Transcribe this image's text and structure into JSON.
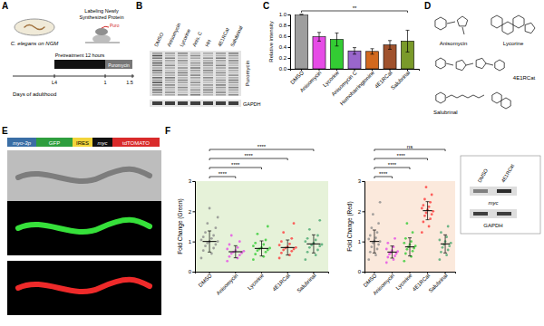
{
  "panel_labels": [
    "A",
    "B",
    "C",
    "D",
    "E",
    "F"
  ],
  "panel_a": {
    "dish_label": "C. elegans on NGM",
    "label_lines": [
      "Labeling Newly",
      "Synthesized Protein"
    ],
    "tag": "Puro",
    "pretreatment": "Pretreatment 12 hours",
    "labeling": "Puromycin",
    "timeline_label": "Days of adulthood",
    "timeline_ticks": [
      "L4",
      "1",
      "1.5"
    ]
  },
  "panel_b": {
    "lanes": [
      "DMSO",
      "Anisomycin",
      "Lycorine",
      "Anis. C",
      "HH",
      "4E1RCat",
      "Salubrinal"
    ],
    "rows": [
      "Puromycin",
      "GAPDH"
    ]
  },
  "panel_d": {
    "compounds": [
      "Anisomycin",
      "Lycorine",
      "4E1RCat",
      "Salubrinal"
    ]
  },
  "panel_e": {
    "construct": [
      "myo-3p",
      "GFP",
      "IRES",
      "myc",
      "tdTOMATO"
    ]
  },
  "panel_f_inset": {
    "lanes": [
      "DMSO",
      "4E1RCat"
    ],
    "rows": [
      "myc",
      "GAPDH"
    ]
  },
  "chart_data": [
    {
      "type": "bar",
      "categories": [
        "DMSO",
        "Anisomycin",
        "Lycorine",
        "Anisomycin C",
        "Homoharringtonine",
        "4E1RCat",
        "Salubrinal"
      ],
      "values": [
        1.0,
        0.59,
        0.54,
        0.33,
        0.32,
        0.44,
        0.51
      ],
      "errors": [
        0,
        0.08,
        0.12,
        0.06,
        0.05,
        0.08,
        0.2
      ],
      "colors": [
        "#9e9e9e",
        "#e64ce6",
        "#33cc33",
        "#9966cc",
        "#d2691e",
        "#a0522d",
        "#7a9a2a"
      ],
      "y_label": "Relative intensity",
      "ylim": [
        0,
        1
      ],
      "yticks": [
        {
          "value": 0,
          "label": "0.0"
        },
        0.2,
        0.4,
        0.6,
        0.8,
        {
          "value": 1,
          "label": "1.0"
        }
      ],
      "annotations": [
        {
          "text": "**",
          "from": "DMSO",
          "to": "Salubrinal"
        }
      ]
    },
    {
      "type": "strip",
      "categories": [
        "DMSO",
        "Anisomycin",
        "Lycorine",
        "4E1RCat",
        "Salubrinal"
      ],
      "values": [
        [
          0.45,
          0.6,
          0.7,
          0.78,
          0.85,
          0.9,
          0.95,
          1.0,
          1.0,
          1.05,
          1.1,
          1.15,
          1.2,
          1.3,
          1.45,
          1.6,
          1.8,
          2.1
        ],
        [
          0.35,
          0.45,
          0.5,
          0.55,
          0.6,
          0.62,
          0.65,
          0.68,
          0.7,
          0.75,
          0.8,
          0.9,
          1.0,
          1.2
        ],
        [
          0.4,
          0.5,
          0.58,
          0.65,
          0.7,
          0.72,
          0.75,
          0.78,
          0.8,
          0.85,
          0.9,
          0.95,
          1.05,
          1.25,
          1.5
        ],
        [
          0.45,
          0.55,
          0.62,
          0.68,
          0.72,
          0.75,
          0.78,
          0.8,
          0.82,
          0.88,
          0.92,
          1.0,
          1.1,
          1.3,
          1.6
        ],
        [
          0.4,
          0.55,
          0.65,
          0.72,
          0.8,
          0.85,
          0.88,
          0.9,
          0.95,
          1.0,
          1.05,
          1.1,
          1.2,
          1.4,
          1.7
        ]
      ],
      "means": [
        1.0,
        0.66,
        0.77,
        0.8,
        0.92
      ],
      "errors": [
        0.35,
        0.2,
        0.25,
        0.25,
        0.3
      ],
      "colors": [
        "#8c8c8c",
        "#e64ce6",
        "#33cc33",
        "#ff3b3b",
        "#4aa870"
      ],
      "y_label": "Fold Change (Green)",
      "ylim": [
        0,
        3
      ],
      "yticks": [
        0,
        1,
        2,
        3
      ],
      "annotations": [
        {
          "text": "****",
          "from": "DMSO",
          "to": "Anisomycin"
        },
        {
          "text": "****",
          "from": "DMSO",
          "to": "Lycorine"
        },
        {
          "text": "****",
          "from": "DMSO",
          "to": "4E1RCat"
        },
        {
          "text": "****",
          "from": "DMSO",
          "to": "Salubrinal"
        }
      ]
    },
    {
      "type": "strip",
      "categories": [
        "DMSO",
        "Anisomycin",
        "Lycorine",
        "4E1RCat",
        "Salubrinal"
      ],
      "values": [
        [
          0.4,
          0.55,
          0.65,
          0.75,
          0.82,
          0.9,
          0.95,
          1.0,
          1.02,
          1.08,
          1.12,
          1.2,
          1.3,
          1.45,
          1.6,
          1.9,
          2.3
        ],
        [
          0.3,
          0.4,
          0.48,
          0.52,
          0.58,
          0.6,
          0.63,
          0.67,
          0.7,
          0.75,
          0.82,
          0.95,
          1.1
        ],
        [
          0.35,
          0.5,
          0.6,
          0.68,
          0.74,
          0.78,
          0.82,
          0.85,
          0.9,
          0.95,
          1.0,
          1.1,
          1.3,
          1.6
        ],
        [
          1.3,
          1.5,
          1.65,
          1.75,
          1.85,
          1.9,
          1.95,
          2.0,
          2.05,
          2.1,
          2.15,
          2.2,
          2.3,
          2.4,
          2.55,
          2.8
        ],
        [
          0.4,
          0.55,
          0.65,
          0.72,
          0.8,
          0.85,
          0.9,
          0.95,
          1.0,
          1.05,
          1.15,
          1.3,
          1.5
        ]
      ],
      "means": [
        1.0,
        0.65,
        0.82,
        2.02,
        0.92
      ],
      "errors": [
        0.38,
        0.2,
        0.3,
        0.3,
        0.3
      ],
      "colors": [
        "#8c8c8c",
        "#e64ce6",
        "#33cc33",
        "#ff3b3b",
        "#4aa870"
      ],
      "y_label": "Fold Change (Red)",
      "ylim": [
        0,
        3
      ],
      "yticks": [
        0,
        1,
        2,
        3
      ],
      "annotations": [
        {
          "text": "****",
          "from": "DMSO",
          "to": "Anisomycin"
        },
        {
          "text": "****",
          "from": "DMSO",
          "to": "Lycorine"
        },
        {
          "text": "****",
          "from": "DMSO",
          "to": "4E1RCat"
        },
        {
          "text": "ns",
          "from": "DMSO",
          "to": "Salubrinal"
        }
      ]
    }
  ]
}
